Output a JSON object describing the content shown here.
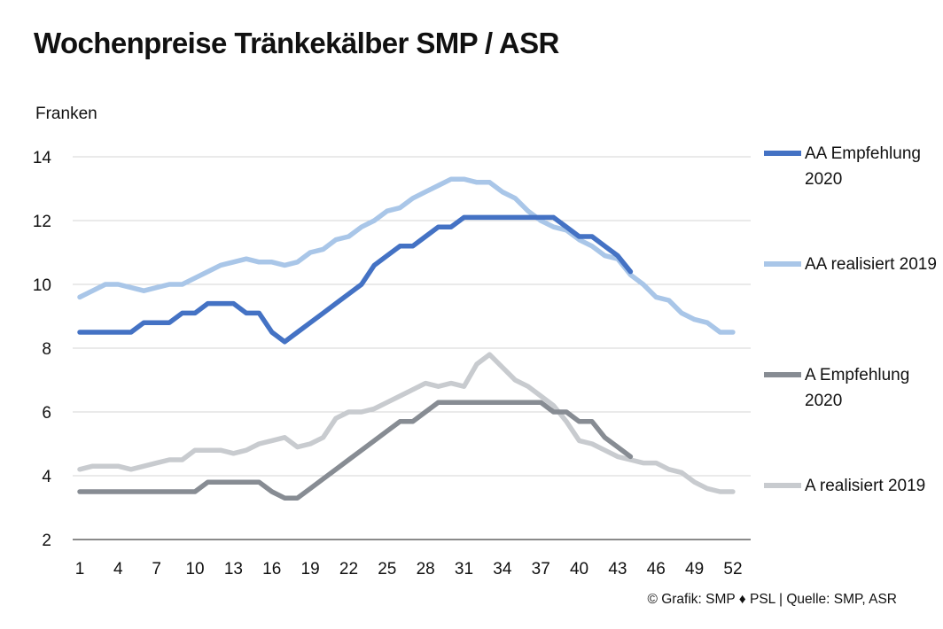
{
  "title": "Wochenpreise Tränkekälber SMP / ASR",
  "source": "© Grafik: SMP ♦ PSL | Quelle: SMP, ASR",
  "chart_data": {
    "type": "line",
    "title": "Wochenpreise Tränkekälber SMP / ASR",
    "ylabel": "Franken",
    "xlabel": "",
    "ylim": [
      2,
      14
    ],
    "xlim": [
      1,
      52
    ],
    "y_ticks": [
      2,
      4,
      6,
      8,
      10,
      12,
      14
    ],
    "x_ticks": [
      1,
      4,
      7,
      10,
      13,
      16,
      19,
      22,
      25,
      28,
      31,
      34,
      37,
      40,
      43,
      46,
      49,
      52
    ],
    "grid": "horizontal",
    "legend": "right",
    "series": [
      {
        "name": "AA Empfehlung 2020",
        "color": "#4472c4",
        "x": [
          1,
          2,
          3,
          4,
          5,
          6,
          7,
          8,
          9,
          10,
          11,
          12,
          13,
          14,
          15,
          16,
          17,
          18,
          19,
          20,
          21,
          22,
          23,
          24,
          25,
          26,
          27,
          28,
          29,
          30,
          31,
          32,
          33,
          34,
          35,
          36,
          37,
          38,
          39,
          40,
          41,
          42,
          43,
          44
        ],
        "values": [
          8.5,
          8.5,
          8.5,
          8.5,
          8.5,
          8.8,
          8.8,
          8.8,
          9.1,
          9.1,
          9.4,
          9.4,
          9.4,
          9.1,
          9.1,
          8.5,
          8.2,
          8.5,
          8.8,
          9.1,
          9.4,
          9.7,
          10.0,
          10.6,
          10.9,
          11.2,
          11.2,
          11.5,
          11.8,
          11.8,
          12.1,
          12.1,
          12.1,
          12.1,
          12.1,
          12.1,
          12.1,
          12.1,
          11.8,
          11.5,
          11.5,
          11.2,
          10.9,
          10.4
        ]
      },
      {
        "name": "AA realisiert 2019",
        "color": "#a9c6e8",
        "x": [
          1,
          2,
          3,
          4,
          5,
          6,
          7,
          8,
          9,
          10,
          11,
          12,
          13,
          14,
          15,
          16,
          17,
          18,
          19,
          20,
          21,
          22,
          23,
          24,
          25,
          26,
          27,
          28,
          29,
          30,
          31,
          32,
          33,
          34,
          35,
          36,
          37,
          38,
          39,
          40,
          41,
          42,
          43,
          44,
          45,
          46,
          47,
          48,
          49,
          50,
          51,
          52
        ],
        "values": [
          9.6,
          9.8,
          10.0,
          10.0,
          9.9,
          9.8,
          9.9,
          10.0,
          10.0,
          10.2,
          10.4,
          10.6,
          10.7,
          10.8,
          10.7,
          10.7,
          10.6,
          10.7,
          11.0,
          11.1,
          11.4,
          11.5,
          11.8,
          12.0,
          12.3,
          12.4,
          12.7,
          12.9,
          13.1,
          13.3,
          13.3,
          13.2,
          13.2,
          12.9,
          12.7,
          12.3,
          12.0,
          11.8,
          11.7,
          11.4,
          11.2,
          10.9,
          10.8,
          10.3,
          10.0,
          9.6,
          9.5,
          9.1,
          8.9,
          8.8,
          8.5,
          8.5
        ]
      },
      {
        "name": "A Empfehlung 2020",
        "color": "#878c93",
        "x": [
          1,
          2,
          3,
          4,
          5,
          6,
          7,
          8,
          9,
          10,
          11,
          12,
          13,
          14,
          15,
          16,
          17,
          18,
          19,
          20,
          21,
          22,
          23,
          24,
          25,
          26,
          27,
          28,
          29,
          30,
          31,
          32,
          33,
          34,
          35,
          36,
          37,
          38,
          39,
          40,
          41,
          42,
          43,
          44
        ],
        "values": [
          3.5,
          3.5,
          3.5,
          3.5,
          3.5,
          3.5,
          3.5,
          3.5,
          3.5,
          3.5,
          3.8,
          3.8,
          3.8,
          3.8,
          3.8,
          3.5,
          3.3,
          3.3,
          3.6,
          3.9,
          4.2,
          4.5,
          4.8,
          5.1,
          5.4,
          5.7,
          5.7,
          6.0,
          6.3,
          6.3,
          6.3,
          6.3,
          6.3,
          6.3,
          6.3,
          6.3,
          6.3,
          6.0,
          6.0,
          5.7,
          5.7,
          5.2,
          4.9,
          4.6
        ]
      },
      {
        "name": "A realisiert 2019",
        "color": "#c8cbcf",
        "x": [
          1,
          2,
          3,
          4,
          5,
          6,
          7,
          8,
          9,
          10,
          11,
          12,
          13,
          14,
          15,
          16,
          17,
          18,
          19,
          20,
          21,
          22,
          23,
          24,
          25,
          26,
          27,
          28,
          29,
          30,
          31,
          32,
          33,
          34,
          35,
          36,
          37,
          38,
          39,
          40,
          41,
          42,
          43,
          44,
          45,
          46,
          47,
          48,
          49,
          50,
          51,
          52
        ],
        "values": [
          4.2,
          4.3,
          4.3,
          4.3,
          4.2,
          4.3,
          4.4,
          4.5,
          4.5,
          4.8,
          4.8,
          4.8,
          4.7,
          4.8,
          5.0,
          5.1,
          5.2,
          4.9,
          5.0,
          5.2,
          5.8,
          6.0,
          6.0,
          6.1,
          6.3,
          6.5,
          6.7,
          6.9,
          6.8,
          6.9,
          6.8,
          7.5,
          7.8,
          7.4,
          7.0,
          6.8,
          6.5,
          6.2,
          5.7,
          5.1,
          5.0,
          4.8,
          4.6,
          4.5,
          4.4,
          4.4,
          4.2,
          4.1,
          3.8,
          3.6,
          3.5,
          3.5
        ]
      }
    ]
  }
}
